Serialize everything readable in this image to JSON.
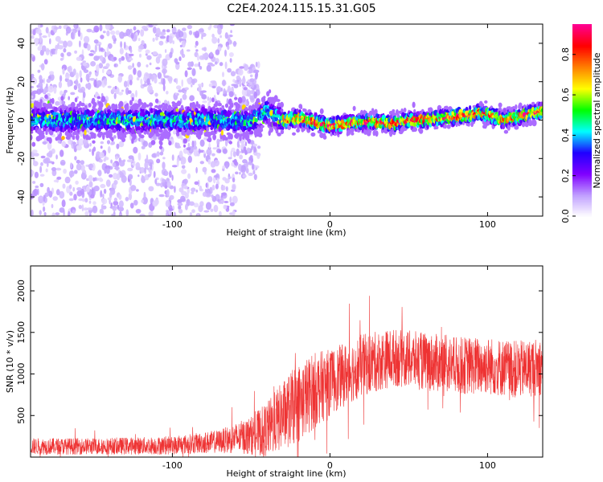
{
  "title": "C2E4.2024.115.15.31.G05",
  "chart_data": [
    {
      "type": "heatmap",
      "title": "C2E4.2024.115.15.31.G05",
      "xlabel": "Height of straight line (km)",
      "ylabel": "Frequency (Hz)",
      "xlim": [
        -190,
        135
      ],
      "ylim": [
        -50,
        50
      ],
      "x_ticks": [
        -100,
        0,
        100
      ],
      "y_ticks": [
        -40,
        -20,
        0,
        20,
        40
      ],
      "colorbar": {
        "label": "Normalized spectral amplitude",
        "range": [
          0.0,
          0.95
        ],
        "ticks": [
          0.0,
          0.2,
          0.4,
          0.6,
          0.8
        ],
        "colormap": [
          "#ffffff",
          "#c0a0ff",
          "#8000ff",
          "#2000ff",
          "#00ffff",
          "#00ff00",
          "#ffff00",
          "#ff8000",
          "#ff0000",
          "#ff0090"
        ]
      },
      "ridge": {
        "x": [
          -190,
          -150,
          -110,
          -70,
          -50,
          -40,
          -30,
          -20,
          -10,
          0,
          10,
          20,
          30,
          40,
          50,
          60,
          70,
          80,
          90,
          95,
          100,
          110,
          120,
          130,
          135
        ],
        "y": [
          0,
          0,
          0,
          0,
          -1,
          5,
          0,
          1,
          -1,
          -3,
          -2,
          -1,
          -1,
          -2,
          0,
          0,
          1,
          2,
          3,
          4,
          3,
          0,
          2,
          4,
          5
        ]
      }
    },
    {
      "type": "line",
      "xlabel": "Height of straight line (km)",
      "ylabel": "SNR (10 * v/v)",
      "xlim": [
        -190,
        135
      ],
      "ylim": [
        0,
        2300
      ],
      "x_ticks": [
        -100,
        0,
        100
      ],
      "y_ticks": [
        500,
        1000,
        1500,
        2000
      ],
      "color": "#ee3333",
      "envelope": {
        "x": [
          -190,
          -150,
          -100,
          -70,
          -50,
          -40,
          -30,
          -20,
          -10,
          0,
          10,
          20,
          40,
          60,
          80,
          100,
          120,
          135
        ],
        "mean": [
          130,
          130,
          140,
          190,
          260,
          330,
          500,
          650,
          800,
          900,
          1000,
          1100,
          1200,
          1150,
          1100,
          1100,
          1050,
          1100
        ],
        "spread": [
          100,
          100,
          110,
          140,
          230,
          330,
          420,
          480,
          460,
          400,
          380,
          380,
          350,
          350,
          350,
          350,
          350,
          350
        ]
      }
    }
  ]
}
